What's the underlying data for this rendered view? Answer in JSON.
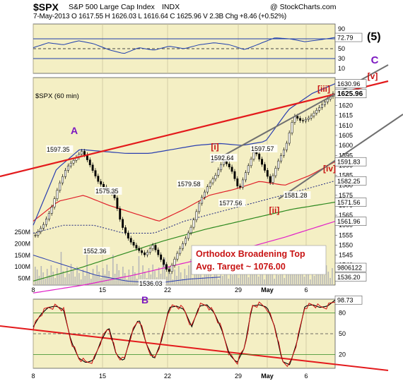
{
  "header": {
    "symbol": "$SPX",
    "name": "S&P 500 Large Cap Index",
    "exchange": "INDX",
    "copyright": "@ StockCharts.com",
    "quote": "7-May-2013   O 1617.55   H 1626.03   L 1616.64   C 1625.96   V 2.3B   Chg +8.46 (+0.52%)"
  },
  "colors": {
    "plot_bg": "#f4efc4",
    "rsi_line": "#1f3fae",
    "upper_band": "#2a3fb0",
    "ema_red": "#e0202a",
    "sma_green": "#2e8a20",
    "sma_magenta": "#e020c8",
    "dotted_blue": "#1a237e",
    "trend_red": "#e31a1c",
    "channel_gray": "#707070",
    "wave_label": "#7b16c0",
    "annotation_red": "#c81414",
    "stoch_fast": "#d01010",
    "stoch_slow": "#000000"
  },
  "chart_data": [
    {
      "type": "line",
      "panel": "RSI",
      "y_ticks": [
        90,
        70,
        50,
        30,
        10
      ],
      "last_value": 72.79,
      "reference_lines": [
        70,
        50,
        30
      ],
      "wave_label": "(5)"
    },
    {
      "type": "candlestick",
      "panel": "price",
      "title": "$SPX (60 min)",
      "x_labels": [
        "8",
        "15",
        "22",
        "29",
        "May",
        "6"
      ],
      "y_ticks": [
        1535,
        1540,
        1545,
        1550,
        1555,
        1560,
        1565,
        1570,
        1575,
        1580,
        1585,
        1590,
        1595,
        1600,
        1605,
        1610,
        1615,
        1620,
        1625,
        1630
      ],
      "ylim": [
        1530,
        1634
      ],
      "volume_ticks": [
        "250M",
        "200M",
        "150M",
        "100M",
        "50M"
      ],
      "series": [
        {
          "name": "price",
          "values": [
            1555,
            1560,
            1568,
            1580,
            1589,
            1593,
            1597.35,
            1590,
            1582,
            1578,
            1575.35,
            1560,
            1552.36,
            1548,
            1545,
            1550,
            1543,
            1536.03,
            1545,
            1552,
            1560,
            1572,
            1579.58,
            1585,
            1592.64,
            1588,
            1577.56,
            1588,
            1597.57,
            1590,
            1581.28,
            1592,
            1600,
            1615,
            1612,
            1614,
            1618,
            1622,
            1625.96
          ]
        }
      ],
      "right_labels": [
        {
          "value": 1630.96,
          "text": "1630.96"
        },
        {
          "value": 1625.96,
          "text": "1625.96"
        },
        {
          "value": 1591.83,
          "text": "1591.83"
        },
        {
          "value": 1582.25,
          "text": "1582.25"
        },
        {
          "value": 1571.56,
          "text": "1571.56"
        },
        {
          "value": 1561.96,
          "text": "1561.96"
        }
      ],
      "volume_labels": [
        "9806122",
        "1536.20"
      ],
      "price_labels": [
        "1597.35",
        "1575.35",
        "1552.36",
        "1536.03",
        "1579.58",
        "1592.64",
        "1577.56",
        "1597.57",
        "1581.28"
      ],
      "wave_labels": [
        "A",
        "B",
        "C",
        "[i]",
        "[ii]",
        "[iii]",
        "[iv]",
        "[v]"
      ],
      "annotation": [
        "Orthodox Broadening Top",
        "Avg. Target ~ 1076.00"
      ]
    },
    {
      "type": "line",
      "panel": "stochastic",
      "y_ticks": [
        80,
        50,
        20
      ],
      "last_value": 98.73,
      "x_labels": [
        "8",
        "15",
        "22",
        "29",
        "May",
        "6"
      ]
    }
  ]
}
